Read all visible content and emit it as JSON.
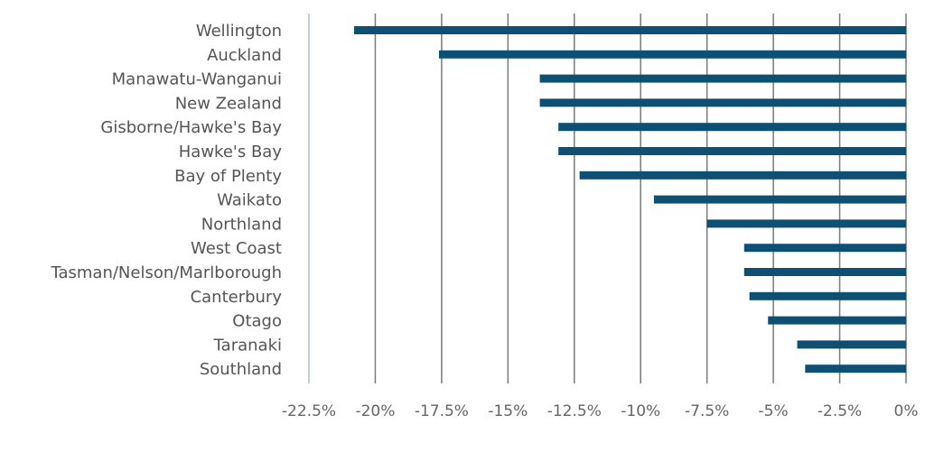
{
  "chart_data": {
    "type": "bar",
    "orientation": "horizontal",
    "categories": [
      "Wellington",
      "Auckland",
      "Manawatu-Wanganui",
      "New Zealand",
      "Gisborne/Hawke's Bay",
      "Hawke's Bay",
      "Bay of Plenty",
      "Waikato",
      "Northland",
      "West Coast",
      "Tasman/Nelson/Marlborough",
      "Canterbury",
      "Otago",
      "Taranaki",
      "Southland"
    ],
    "values": [
      -20.8,
      -17.6,
      -13.8,
      -13.8,
      -13.1,
      -13.1,
      -12.3,
      -9.5,
      -7.5,
      -6.1,
      -6.1,
      -5.9,
      -5.2,
      -4.1,
      -3.8
    ],
    "xlim": [
      -22.5,
      0
    ],
    "xticks": [
      "-22.5%",
      "-20%",
      "-17.5%",
      "-15%",
      "-12.5%",
      "-10%",
      "-7.5%",
      "-5%",
      "-2.5%",
      "0%"
    ],
    "xtick_values": [
      -22.5,
      -20,
      -17.5,
      -15,
      -12.5,
      -10,
      -7.5,
      -5,
      -2.5,
      0
    ],
    "title": "",
    "xlabel": "",
    "ylabel": "",
    "grid": "vertical",
    "bar_color": "#0e4f74",
    "grid_color": "#7a7a7a",
    "axis_color": "#a9c4c9"
  }
}
